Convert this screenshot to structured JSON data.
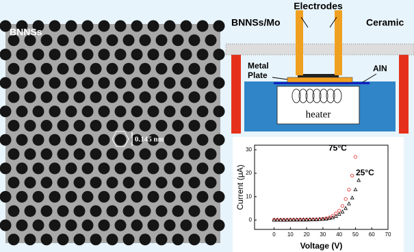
{
  "image": {
    "label": "BNNSs",
    "scale": "0.145 nm"
  },
  "diagram": {
    "electrodes": "Electrodes",
    "sample": "BNNSs/Mo",
    "ceramic": "Ceramic",
    "plate_1": "Metal",
    "plate_2": "Plate",
    "aln": "AlN",
    "heater": "heater"
  },
  "chart_data": {
    "type": "scatter",
    "x_label": "Voltage (V)",
    "y_label": "Current (μA)",
    "annotations": [
      "75°C",
      "25°C"
    ],
    "x": [
      0,
      2,
      4,
      6,
      8,
      10,
      12,
      14,
      16,
      18,
      20,
      22,
      24,
      26,
      28,
      30,
      32,
      34,
      36,
      38,
      40,
      42,
      44,
      46,
      48,
      50,
      52
    ],
    "series": [
      {
        "name": "75°C",
        "color": "#e0201f",
        "marker": "circle",
        "values": [
          0.1,
          0.1,
          0.1,
          0.1,
          0.1,
          0.1,
          0.1,
          0.1,
          0.2,
          0.2,
          0.2,
          0.2,
          0.3,
          0.3,
          0.4,
          0.5,
          0.7,
          1.1,
          1.8,
          2.8,
          4,
          6,
          9,
          13,
          19,
          27,
          null
        ]
      },
      {
        "name": "25°C",
        "color": "#000000",
        "marker": "triangle",
        "values": [
          0,
          0,
          0,
          0,
          0,
          0.1,
          0.1,
          0.1,
          0.1,
          0.1,
          0.1,
          0.2,
          0.2,
          0.2,
          0.3,
          0.4,
          0.5,
          0.7,
          1,
          1.6,
          2.5,
          3.5,
          5,
          7,
          9.5,
          13,
          17
        ]
      }
    ],
    "xlim": [
      -12,
      70
    ],
    "ylim": [
      -4,
      32
    ],
    "xticks": [
      0,
      10,
      20,
      30,
      40,
      50,
      60,
      70
    ],
    "yticks": [
      0,
      10,
      20,
      30
    ]
  }
}
